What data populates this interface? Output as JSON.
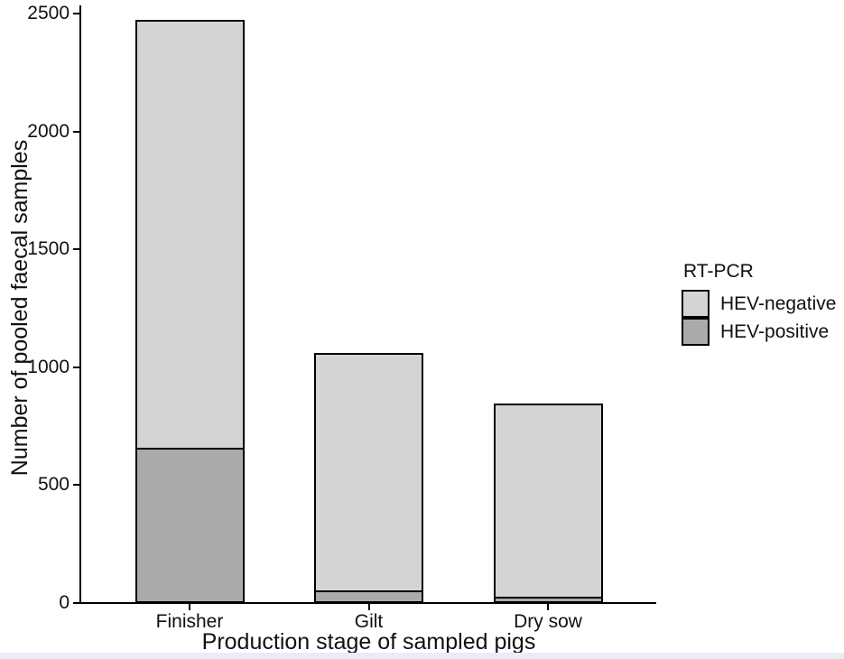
{
  "chart_data": {
    "type": "bar",
    "stacked": true,
    "title": "",
    "xlabel": "Production stage of sampled pigs",
    "ylabel": "Number of pooled faecal samples",
    "categories": [
      "Finisher",
      "Gilt",
      "Dry sow"
    ],
    "series": [
      {
        "name": "HEV-negative",
        "color": "#d4d4d4",
        "values": [
          1825,
          1015,
          825
        ]
      },
      {
        "name": "HEV-positive",
        "color": "#aaaaaa",
        "values": [
          650,
          45,
          20
        ]
      }
    ],
    "totals": [
      2475,
      1060,
      845
    ],
    "yticks": [
      0,
      500,
      1000,
      1500,
      2000,
      2500
    ],
    "ylim": [
      0,
      2500
    ],
    "grid": false,
    "legend": {
      "title": "RT-PCR",
      "position": "right",
      "items": [
        {
          "label": "HEV-negative",
          "color": "#d4d4d4"
        },
        {
          "label": "HEV-positive",
          "color": "#aaaaaa"
        }
      ]
    }
  },
  "colors": {
    "axis": "#000000",
    "bar_border": "#000000",
    "text": "#111111",
    "background": "#ffffff",
    "bottom_strip": "#e8edf6"
  }
}
